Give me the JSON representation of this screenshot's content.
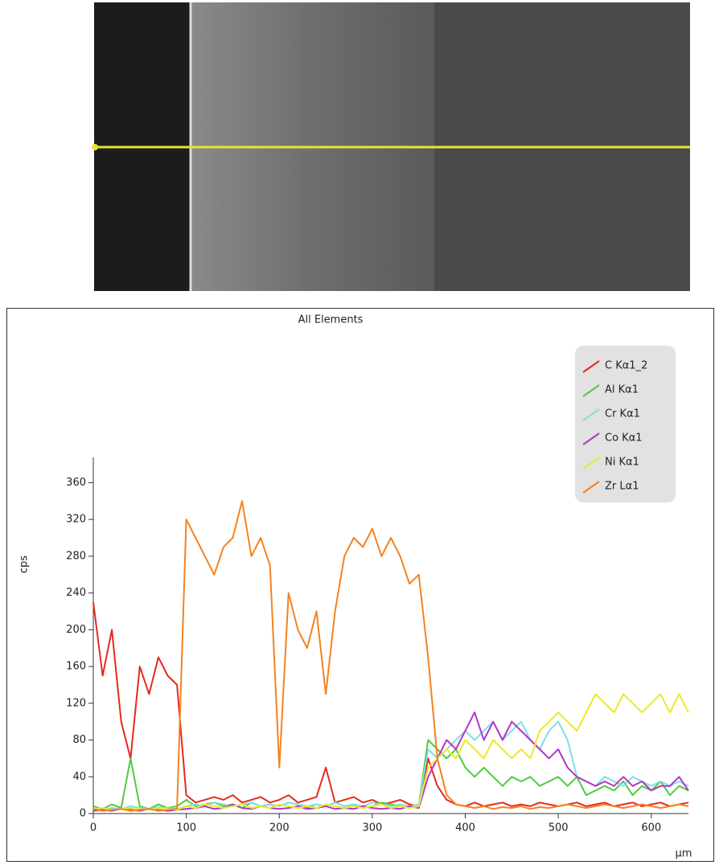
{
  "chart_data": {
    "type": "line",
    "title": "All Elements",
    "xlabel": "µm",
    "ylabel": "cps",
    "x": [
      0,
      10,
      20,
      30,
      40,
      50,
      60,
      70,
      80,
      90,
      100,
      110,
      120,
      130,
      140,
      150,
      160,
      170,
      180,
      190,
      200,
      210,
      220,
      230,
      240,
      250,
      260,
      270,
      280,
      290,
      300,
      310,
      320,
      330,
      340,
      350,
      360,
      370,
      380,
      390,
      400,
      410,
      420,
      430,
      440,
      450,
      460,
      470,
      480,
      490,
      500,
      510,
      520,
      530,
      540,
      550,
      560,
      570,
      580,
      590,
      600,
      610,
      620,
      630,
      640
    ],
    "xlim": [
      0,
      640
    ],
    "xticks": [
      0,
      100,
      200,
      300,
      400,
      500,
      600
    ],
    "ylim": [
      0,
      370
    ],
    "yticks": [
      0,
      40,
      80,
      120,
      160,
      200,
      240,
      280,
      320,
      360
    ],
    "legend": "top-right",
    "series": [
      {
        "name": "C Kα1_2",
        "color": "#e8281e",
        "values": [
          230,
          150,
          200,
          100,
          60,
          160,
          130,
          170,
          150,
          140,
          20,
          12,
          15,
          18,
          15,
          20,
          12,
          15,
          18,
          12,
          15,
          20,
          12,
          15,
          18,
          50,
          12,
          15,
          18,
          12,
          15,
          10,
          12,
          15,
          10,
          8,
          60,
          30,
          15,
          10,
          8,
          12,
          8,
          10,
          12,
          8,
          10,
          8,
          12,
          10,
          8,
          10,
          12,
          8,
          10,
          12,
          8,
          10,
          12,
          8,
          10,
          12,
          8,
          10,
          12
        ]
      },
      {
        "name": "Al Kα1",
        "color": "#4ccd3c",
        "values": [
          8,
          5,
          10,
          6,
          60,
          8,
          5,
          10,
          6,
          8,
          15,
          8,
          10,
          12,
          8,
          10,
          6,
          12,
          8,
          10,
          8,
          12,
          10,
          6,
          10,
          8,
          12,
          8,
          10,
          6,
          8,
          12,
          10,
          8,
          6,
          10,
          80,
          70,
          60,
          70,
          50,
          40,
          50,
          40,
          30,
          40,
          35,
          40,
          30,
          35,
          40,
          30,
          40,
          20,
          25,
          30,
          25,
          35,
          20,
          30,
          25,
          35,
          20,
          30,
          25
        ]
      },
      {
        "name": "Cr Kα1",
        "color": "#7fe0e0",
        "values": [
          5,
          4,
          6,
          5,
          8,
          6,
          5,
          7,
          6,
          5,
          8,
          10,
          8,
          12,
          10,
          8,
          10,
          12,
          8,
          10,
          8,
          12,
          10,
          8,
          10,
          8,
          12,
          8,
          10,
          8,
          12,
          10,
          8,
          10,
          8,
          10,
          70,
          60,
          70,
          80,
          90,
          80,
          90,
          100,
          80,
          90,
          100,
          80,
          70,
          90,
          100,
          80,
          40,
          35,
          30,
          40,
          35,
          30,
          40,
          35,
          30,
          35,
          30,
          35,
          30
        ]
      },
      {
        "name": "Co Kα1",
        "color": "#b535c8",
        "values": [
          3,
          4,
          3,
          5,
          4,
          3,
          5,
          4,
          3,
          4,
          5,
          6,
          8,
          5,
          6,
          10,
          6,
          5,
          8,
          6,
          5,
          6,
          8,
          5,
          6,
          8,
          5,
          6,
          5,
          8,
          6,
          5,
          6,
          5,
          8,
          6,
          40,
          60,
          80,
          70,
          90,
          110,
          80,
          100,
          80,
          100,
          90,
          80,
          70,
          60,
          70,
          50,
          40,
          35,
          30,
          35,
          30,
          40,
          30,
          35,
          25,
          30,
          30,
          40,
          25
        ]
      },
      {
        "name": "Ni Kα1",
        "color": "#ece928",
        "values": [
          5,
          6,
          4,
          5,
          6,
          5,
          4,
          6,
          5,
          4,
          8,
          6,
          10,
          8,
          6,
          8,
          10,
          6,
          8,
          6,
          10,
          8,
          6,
          8,
          6,
          10,
          8,
          6,
          8,
          6,
          8,
          10,
          6,
          8,
          6,
          8,
          50,
          60,
          70,
          60,
          80,
          70,
          60,
          80,
          70,
          60,
          70,
          60,
          90,
          100,
          110,
          100,
          90,
          110,
          130,
          120,
          110,
          130,
          120,
          110,
          120,
          130,
          110,
          130,
          110
        ]
      },
      {
        "name": "Zr Lα1",
        "color": "#f5821f",
        "values": [
          5,
          3,
          4,
          5,
          3,
          4,
          5,
          3,
          4,
          5,
          320,
          300,
          280,
          260,
          290,
          300,
          340,
          280,
          300,
          270,
          50,
          240,
          200,
          180,
          220,
          130,
          220,
          280,
          300,
          290,
          310,
          280,
          300,
          280,
          250,
          260,
          170,
          60,
          20,
          10,
          8,
          6,
          8,
          5,
          7,
          6,
          8,
          5,
          7,
          6,
          8,
          10,
          8,
          6,
          8,
          10,
          8,
          6,
          8,
          10,
          8,
          6,
          8,
          10,
          8
        ]
      }
    ]
  }
}
